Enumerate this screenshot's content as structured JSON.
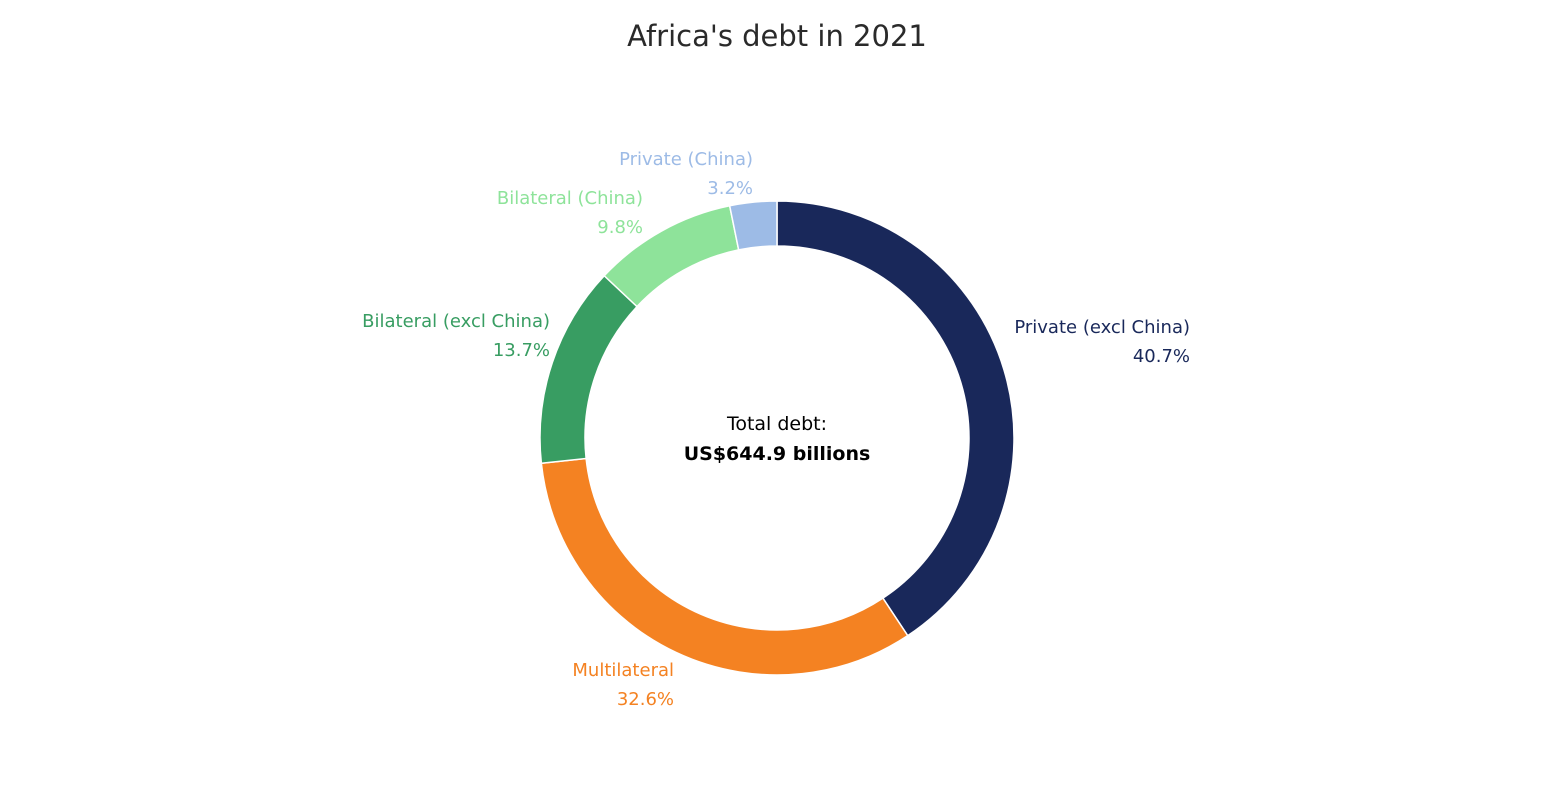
{
  "chart_data": {
    "type": "pie",
    "hole": true,
    "title": "Africa's debt in 2021",
    "center_annotation": {
      "line1": "Total debt:",
      "line2": "US$644.9 billions"
    },
    "slices": [
      {
        "label": "Private (excl China)",
        "value": 40.7,
        "value_label": "40.7%",
        "color": "#19285a"
      },
      {
        "label": "Multilateral",
        "value": 32.6,
        "value_label": "32.6%",
        "color": "#f48222"
      },
      {
        "label": "Bilateral (excl China)",
        "value": 13.7,
        "value_label": "13.7%",
        "color": "#389d62"
      },
      {
        "label": "Bilateral (China)",
        "value": 9.8,
        "value_label": "9.8%",
        "color": "#8ee39a"
      },
      {
        "label": "Private (China)",
        "value": 3.2,
        "value_label": "3.2%",
        "color": "#9dbbe6"
      }
    ],
    "direction": "clockwise",
    "start": "top",
    "legend": "none"
  }
}
